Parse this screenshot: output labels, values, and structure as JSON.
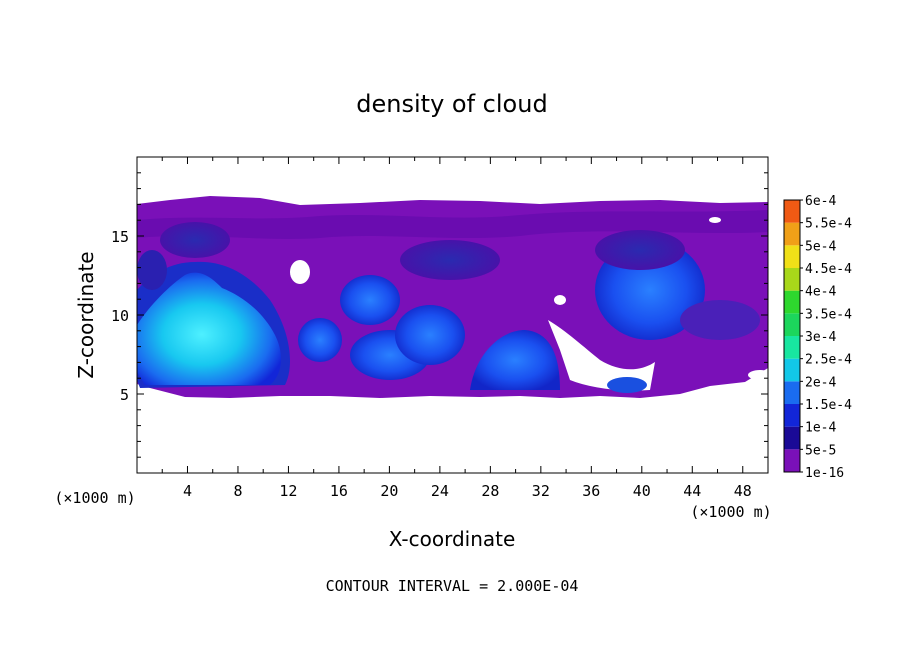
{
  "chart_data": {
    "type": "heatmap",
    "title": "density of cloud",
    "xlabel": "X-coordinate",
    "ylabel": "Z-coordinate",
    "x_unit_label": "(×1000 m)",
    "y_unit_label": "(×1000 m)",
    "xlim": [
      0,
      50
    ],
    "ylim": [
      0,
      20
    ],
    "x_ticks": [
      4,
      8,
      12,
      16,
      20,
      24,
      28,
      32,
      36,
      40,
      44,
      48
    ],
    "x_tick_labels": [
      "4",
      "8",
      "12",
      "16",
      "20",
      "24",
      "28",
      "32",
      "36",
      "40",
      "44",
      "48"
    ],
    "y_ticks": [
      5,
      10,
      15
    ],
    "y_tick_labels": [
      "5",
      "10",
      "15"
    ],
    "footer": "CONTOUR INTERVAL = 2.000E-04",
    "colorbar": {
      "levels": [
        "1e-16",
        "5e-5",
        "1e-4",
        "1.5e-4",
        "2e-4",
        "2.5e-4",
        "3e-4",
        "3.5e-4",
        "4e-4",
        "4.5e-4",
        "5e-4",
        "5.5e-4",
        "6e-4"
      ],
      "colors": [
        "#7a10b8",
        "#1a0a96",
        "#1226d8",
        "#1a6cf0",
        "#12c8e8",
        "#18e6a0",
        "#1cd65c",
        "#2ed82e",
        "#a8d81a",
        "#f0e018",
        "#f0a018",
        "#f05a14",
        "#f02a2a",
        "#f88080"
      ]
    },
    "cloud_base_km": 5,
    "cloud_top_km": 17,
    "features": [
      {
        "x": [
          0,
          50
        ],
        "z": [
          5,
          17
        ],
        "level": "1e-16"
      },
      {
        "x": [
          0,
          11
        ],
        "z": [
          5.5,
          13
        ],
        "level": "2e-4",
        "max_at": [
          6,
          8
        ]
      },
      {
        "x": [
          14,
          22
        ],
        "z": [
          6,
          11
        ],
        "level": "1e-4"
      },
      {
        "x": [
          20,
          26
        ],
        "z": [
          6.5,
          10
        ],
        "level": "1e-4"
      },
      {
        "x": [
          27,
          33
        ],
        "z": [
          5.5,
          9
        ],
        "level": "1e-4"
      },
      {
        "x": [
          36,
          46
        ],
        "z": [
          7,
          14
        ],
        "level": "1e-4"
      },
      {
        "x": [
          37,
          41
        ],
        "z": [
          5,
          6.5
        ],
        "level": "1e-4"
      }
    ]
  }
}
